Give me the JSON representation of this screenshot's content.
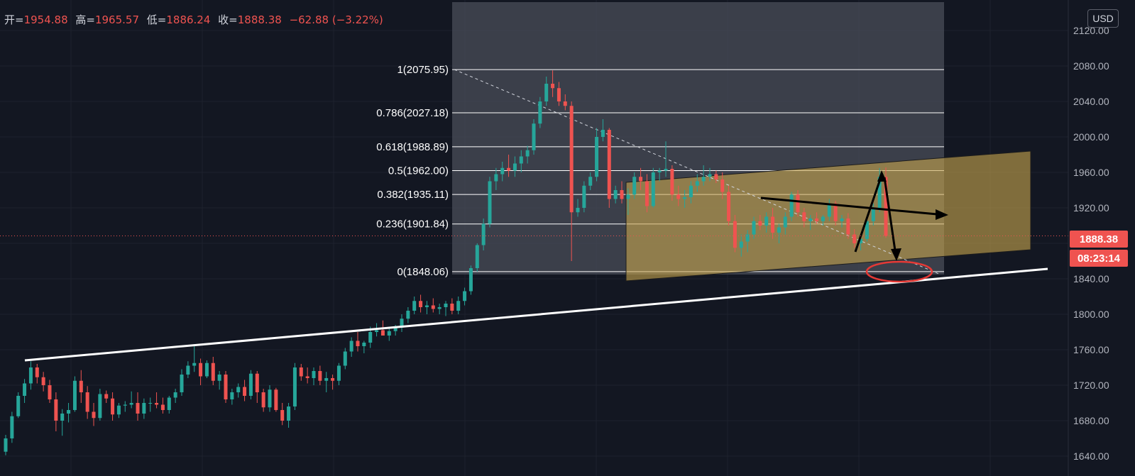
{
  "header": {
    "open_label": "开=",
    "open_value": "1954.88",
    "high_label": "高=",
    "high_value": "1965.57",
    "low_label": "低=",
    "low_value": "1886.24",
    "close_label": "收=",
    "close_value": "1888.38",
    "change_value": "−62.88 (−3.22%)"
  },
  "currency_button": "USD",
  "price_axis": {
    "ticks": [
      "2120.00",
      "2080.00",
      "2040.00",
      "2000.00",
      "1960.00",
      "1920.00",
      "1880.00",
      "1840.00",
      "1800.00",
      "1760.00",
      "1720.00",
      "1680.00",
      "1640.00"
    ],
    "current_price": "1888.38",
    "countdown": "08:23:14"
  },
  "colors": {
    "background": "#131722",
    "up": "#26a69a",
    "down": "#ef5350",
    "fib_zone": "#4a4d58",
    "channel": "#c9a64e",
    "trendline": "#ffffff",
    "ellipse": "#e53935"
  },
  "chart_data": {
    "type": "candlestick",
    "title": "",
    "symbol_currency": "USD",
    "y_axis": {
      "min": 1620,
      "max": 2140,
      "ticks": [
        2120,
        2080,
        2040,
        2000,
        1960,
        1920,
        1880,
        1840,
        1800,
        1760,
        1720,
        1680,
        1640
      ]
    },
    "grid": true,
    "last_price": 1888.38,
    "ohlc_current": {
      "open": 1954.88,
      "high": 1965.57,
      "low": 1886.24,
      "close": 1888.38,
      "change": -62.88,
      "change_pct": -3.22
    },
    "fibonacci_levels": [
      {
        "ratio": "1",
        "price": 2075.95,
        "label": "1(2075.95)"
      },
      {
        "ratio": "0.786",
        "price": 2027.18,
        "label": "0.786(2027.18)"
      },
      {
        "ratio": "0.618",
        "price": 1988.89,
        "label": "0.618(1988.89)"
      },
      {
        "ratio": "0.5",
        "price": 1962.0,
        "label": "0.5(1962.00)"
      },
      {
        "ratio": "0.382",
        "price": 1935.11,
        "label": "0.382(1935.11)"
      },
      {
        "ratio": "0.236",
        "price": 1901.84,
        "label": "0.236(1901.84)"
      },
      {
        "ratio": "0",
        "price": 1848.06,
        "label": "0(1848.06)"
      }
    ],
    "candles": [
      [
        1645,
        1664,
        1641,
        1660
      ],
      [
        1660,
        1690,
        1655,
        1685
      ],
      [
        1685,
        1712,
        1683,
        1708
      ],
      [
        1708,
        1727,
        1700,
        1722
      ],
      [
        1722,
        1747,
        1715,
        1740
      ],
      [
        1740,
        1744,
        1722,
        1729
      ],
      [
        1729,
        1735,
        1713,
        1720
      ],
      [
        1720,
        1726,
        1700,
        1704
      ],
      [
        1704,
        1712,
        1668,
        1680
      ],
      [
        1680,
        1693,
        1663,
        1688
      ],
      [
        1688,
        1700,
        1678,
        1692
      ],
      [
        1692,
        1730,
        1690,
        1725
      ],
      [
        1725,
        1737,
        1700,
        1712
      ],
      [
        1712,
        1719,
        1682,
        1690
      ],
      [
        1690,
        1700,
        1674,
        1683
      ],
      [
        1683,
        1716,
        1680,
        1710
      ],
      [
        1710,
        1714,
        1700,
        1705
      ],
      [
        1705,
        1712,
        1680,
        1687
      ],
      [
        1687,
        1700,
        1683,
        1697
      ],
      [
        1697,
        1702,
        1690,
        1698
      ],
      [
        1698,
        1713,
        1694,
        1700
      ],
      [
        1700,
        1712,
        1680,
        1688
      ],
      [
        1688,
        1705,
        1682,
        1700
      ],
      [
        1700,
        1706,
        1690,
        1700
      ],
      [
        1700,
        1712,
        1694,
        1698
      ],
      [
        1698,
        1706,
        1688,
        1692
      ],
      [
        1692,
        1708,
        1688,
        1706
      ],
      [
        1706,
        1716,
        1700,
        1712
      ],
      [
        1712,
        1738,
        1708,
        1732
      ],
      [
        1732,
        1747,
        1728,
        1742
      ],
      [
        1742,
        1766,
        1735,
        1745
      ],
      [
        1745,
        1750,
        1720,
        1730
      ],
      [
        1730,
        1748,
        1728,
        1745
      ],
      [
        1745,
        1752,
        1720,
        1725
      ],
      [
        1725,
        1736,
        1715,
        1732
      ],
      [
        1732,
        1736,
        1700,
        1704
      ],
      [
        1704,
        1716,
        1698,
        1712
      ],
      [
        1712,
        1722,
        1706,
        1718
      ],
      [
        1718,
        1726,
        1702,
        1708
      ],
      [
        1708,
        1737,
        1704,
        1733
      ],
      [
        1733,
        1736,
        1700,
        1712
      ],
      [
        1712,
        1716,
        1690,
        1695
      ],
      [
        1695,
        1720,
        1690,
        1715
      ],
      [
        1715,
        1717,
        1690,
        1692
      ],
      [
        1692,
        1700,
        1675,
        1680
      ],
      [
        1680,
        1700,
        1672,
        1696
      ],
      [
        1696,
        1745,
        1692,
        1740
      ],
      [
        1740,
        1744,
        1725,
        1730
      ],
      [
        1730,
        1740,
        1722,
        1728
      ],
      [
        1728,
        1740,
        1720,
        1736
      ],
      [
        1736,
        1742,
        1720,
        1725
      ],
      [
        1725,
        1735,
        1712,
        1728
      ],
      [
        1728,
        1732,
        1715,
        1725
      ],
      [
        1725,
        1745,
        1720,
        1742
      ],
      [
        1742,
        1762,
        1738,
        1758
      ],
      [
        1758,
        1774,
        1752,
        1770
      ],
      [
        1770,
        1780,
        1758,
        1764
      ],
      [
        1764,
        1770,
        1756,
        1768
      ],
      [
        1768,
        1786,
        1762,
        1780
      ],
      [
        1780,
        1790,
        1775,
        1782
      ],
      [
        1782,
        1793,
        1778,
        1776
      ],
      [
        1776,
        1786,
        1770,
        1781
      ],
      [
        1781,
        1788,
        1776,
        1785
      ],
      [
        1785,
        1800,
        1780,
        1795
      ],
      [
        1795,
        1808,
        1790,
        1804
      ],
      [
        1804,
        1820,
        1800,
        1815
      ],
      [
        1815,
        1822,
        1802,
        1808
      ],
      [
        1808,
        1815,
        1800,
        1810
      ],
      [
        1810,
        1818,
        1802,
        1806
      ],
      [
        1806,
        1812,
        1800,
        1808
      ],
      [
        1808,
        1815,
        1798,
        1812
      ],
      [
        1812,
        1818,
        1800,
        1804
      ],
      [
        1804,
        1820,
        1800,
        1815
      ],
      [
        1815,
        1830,
        1810,
        1826
      ],
      [
        1826,
        1855,
        1822,
        1852
      ],
      [
        1852,
        1880,
        1848,
        1878
      ],
      [
        1878,
        1908,
        1872,
        1902
      ],
      [
        1902,
        1955,
        1898,
        1950
      ],
      [
        1950,
        1965,
        1940,
        1958
      ],
      [
        1958,
        1972,
        1950,
        1965
      ],
      [
        1965,
        1980,
        1955,
        1962
      ],
      [
        1962,
        1978,
        1955,
        1970
      ],
      [
        1970,
        1985,
        1960,
        1978
      ],
      [
        1978,
        1990,
        1970,
        1985
      ],
      [
        1985,
        2020,
        1980,
        2015
      ],
      [
        2015,
        2045,
        2010,
        2040
      ],
      [
        2040,
        2068,
        2035,
        2060
      ],
      [
        2060,
        2075,
        2045,
        2055
      ],
      [
        2055,
        2062,
        2035,
        2040
      ],
      [
        2040,
        2048,
        2030,
        2035
      ],
      [
        2035,
        2040,
        1860,
        1915
      ],
      [
        1915,
        1930,
        1910,
        1920
      ],
      [
        1920,
        1950,
        1915,
        1945
      ],
      [
        1945,
        1960,
        1940,
        1955
      ],
      [
        1955,
        2010,
        1950,
        2000
      ],
      [
        2000,
        2020,
        1995,
        2008
      ],
      [
        2008,
        2010,
        1920,
        1930
      ],
      [
        1930,
        1945,
        1925,
        1940
      ],
      [
        1940,
        1950,
        1925,
        1930
      ],
      [
        1930,
        1942,
        1912,
        1935
      ],
      [
        1935,
        1960,
        1930,
        1955
      ],
      [
        1955,
        1965,
        1940,
        1950
      ],
      [
        1950,
        1958,
        1915,
        1922
      ],
      [
        1922,
        1965,
        1920,
        1960
      ],
      [
        1960,
        1965,
        1950,
        1962
      ],
      [
        1962,
        1995,
        1955,
        1964
      ],
      [
        1964,
        1968,
        1928,
        1935
      ],
      [
        1935,
        1945,
        1922,
        1930
      ],
      [
        1930,
        1940,
        1920,
        1932
      ],
      [
        1932,
        1950,
        1925,
        1945
      ],
      [
        1945,
        1958,
        1938,
        1950
      ],
      [
        1950,
        1968,
        1945,
        1955
      ],
      [
        1955,
        1965,
        1950,
        1958
      ],
      [
        1958,
        1962,
        1948,
        1952
      ],
      [
        1952,
        1960,
        1930,
        1938
      ],
      [
        1938,
        1945,
        1900,
        1905
      ],
      [
        1905,
        1912,
        1870,
        1875
      ],
      [
        1875,
        1890,
        1865,
        1882
      ],
      [
        1882,
        1895,
        1870,
        1890
      ],
      [
        1890,
        1910,
        1885,
        1905
      ],
      [
        1905,
        1912,
        1895,
        1900
      ],
      [
        1900,
        1915,
        1892,
        1910
      ],
      [
        1910,
        1920,
        1885,
        1892
      ],
      [
        1892,
        1902,
        1880,
        1898
      ],
      [
        1898,
        1915,
        1890,
        1910
      ],
      [
        1910,
        1938,
        1905,
        1935
      ],
      [
        1935,
        1940,
        1910,
        1915
      ],
      [
        1915,
        1920,
        1898,
        1905
      ],
      [
        1905,
        1912,
        1895,
        1908
      ],
      [
        1908,
        1915,
        1902,
        1905
      ],
      [
        1905,
        1912,
        1900,
        1910
      ],
      [
        1910,
        1930,
        1905,
        1925
      ],
      [
        1925,
        1928,
        1900,
        1905
      ],
      [
        1905,
        1912,
        1898,
        1908
      ],
      [
        1908,
        1914,
        1885,
        1890
      ],
      [
        1890,
        1896,
        1875,
        1880
      ],
      [
        1880,
        1890,
        1872,
        1885
      ],
      [
        1885,
        1910,
        1882,
        1905
      ],
      [
        1905,
        1925,
        1900,
        1920
      ],
      [
        1920,
        1965,
        1915,
        1955
      ],
      [
        1954.88,
        1965.57,
        1886.24,
        1888.38
      ]
    ],
    "annotations": [
      {
        "type": "fib_retracement",
        "from": 2075.95,
        "to": 1848.06
      },
      {
        "type": "trendline",
        "desc": "rising support line"
      },
      {
        "type": "parallel_channel",
        "desc": "rising shaded channel"
      },
      {
        "type": "arrows",
        "desc": "projected paths"
      },
      {
        "type": "ellipse",
        "desc": "target area near support"
      }
    ]
  }
}
